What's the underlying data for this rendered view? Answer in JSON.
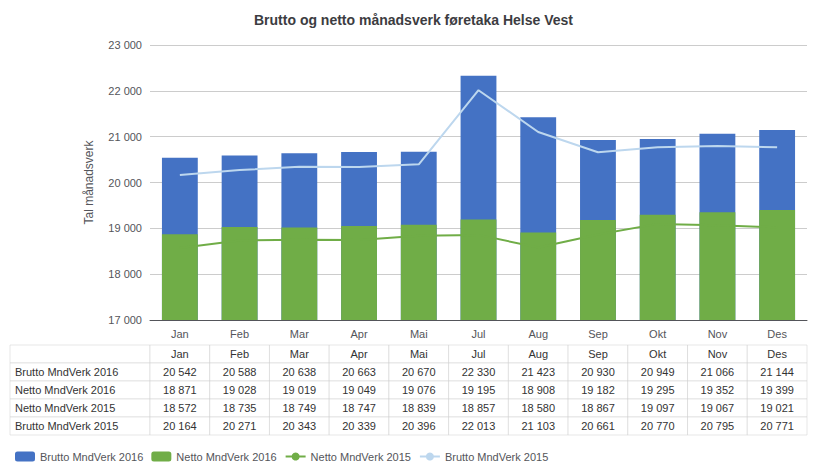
{
  "chart_data": {
    "type": "bar",
    "title": "Brutto og netto månadsverk føretaka Helse Vest",
    "ylabel": "Tal månadsverk",
    "categories": [
      "Jan",
      "Feb",
      "Mar",
      "Apr",
      "Mai",
      "Jul",
      "Aug",
      "Sep",
      "Okt",
      "Nov",
      "Des"
    ],
    "series": [
      {
        "name": "Brutto MndVerk 2016",
        "type": "bar",
        "color": "#4472C4",
        "values": [
          20542,
          20588,
          20638,
          20663,
          20670,
          22330,
          21423,
          20930,
          20949,
          21066,
          21144
        ],
        "value_labels": [
          "20 542",
          "20 588",
          "20 638",
          "20 663",
          "20 670",
          "22 330",
          "21 423",
          "20 930",
          "20 949",
          "21 066",
          "21 144"
        ]
      },
      {
        "name": "Netto MndVerk 2016",
        "type": "bar",
        "color": "#70AD47",
        "values": [
          18871,
          19028,
          19019,
          19049,
          19076,
          19195,
          18908,
          19182,
          19295,
          19352,
          19399
        ],
        "value_labels": [
          "18 871",
          "19 028",
          "19 019",
          "19 049",
          "19 076",
          "19 195",
          "18 908",
          "19 182",
          "19 295",
          "19 352",
          "19 399"
        ]
      },
      {
        "name": "Netto MndVerk 2015",
        "type": "line",
        "color": "#70AD47",
        "values": [
          18572,
          18735,
          18749,
          18747,
          18839,
          18857,
          18580,
          18867,
          19097,
          19067,
          19021
        ],
        "value_labels": [
          "18 572",
          "18 735",
          "18 749",
          "18 747",
          "18 839",
          "18 857",
          "18 580",
          "18 867",
          "19 097",
          "19 067",
          "19 021"
        ]
      },
      {
        "name": "Brutto MndVerk 2015",
        "type": "line",
        "color": "#BDD7EE",
        "values": [
          20164,
          20271,
          20343,
          20339,
          20396,
          22013,
          21103,
          20661,
          20770,
          20795,
          20771
        ],
        "value_labels": [
          "20 164",
          "20 271",
          "20 343",
          "20 339",
          "20 396",
          "22 013",
          "21 103",
          "20 661",
          "20 770",
          "20 795",
          "20 771"
        ]
      }
    ],
    "ylim": [
      17000,
      23000
    ],
    "yticks": [
      {
        "value": 17000,
        "label": "17 000"
      },
      {
        "value": 18000,
        "label": "18 000"
      },
      {
        "value": 19000,
        "label": "19 000"
      },
      {
        "value": 20000,
        "label": "20 000"
      },
      {
        "value": 21000,
        "label": "21 000"
      },
      {
        "value": 22000,
        "label": "22 000"
      },
      {
        "value": 23000,
        "label": "23 000"
      }
    ],
    "grid": true,
    "legend": "lower left"
  }
}
